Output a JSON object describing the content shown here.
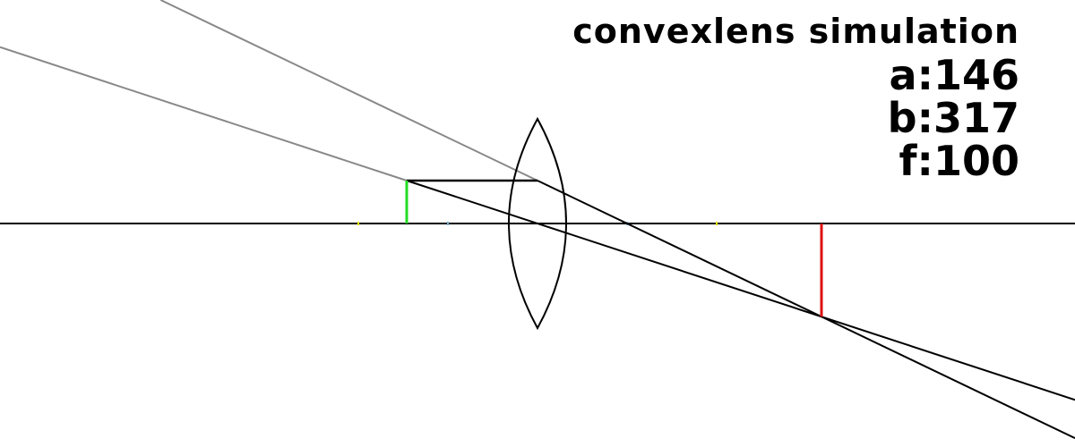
{
  "title": "convexlens simulation",
  "params": {
    "a": {
      "label": "a:",
      "value": "146"
    },
    "b": {
      "label": "b:",
      "value": "317"
    },
    "f": {
      "label": "f:",
      "value": "100"
    }
  },
  "colors": {
    "background": "#ffffff",
    "axis": "#000000",
    "lens": "#000000",
    "ray": "#000000",
    "virtual_ray": "#888888",
    "object": "#22dd22",
    "image": "#dd1111",
    "focal_mark": "#e6e600",
    "double_focal_mark": "#7aaecc"
  },
  "optics": {
    "object_distance": 146,
    "image_distance": 317,
    "focal_length": 100,
    "object_height": 48
  }
}
